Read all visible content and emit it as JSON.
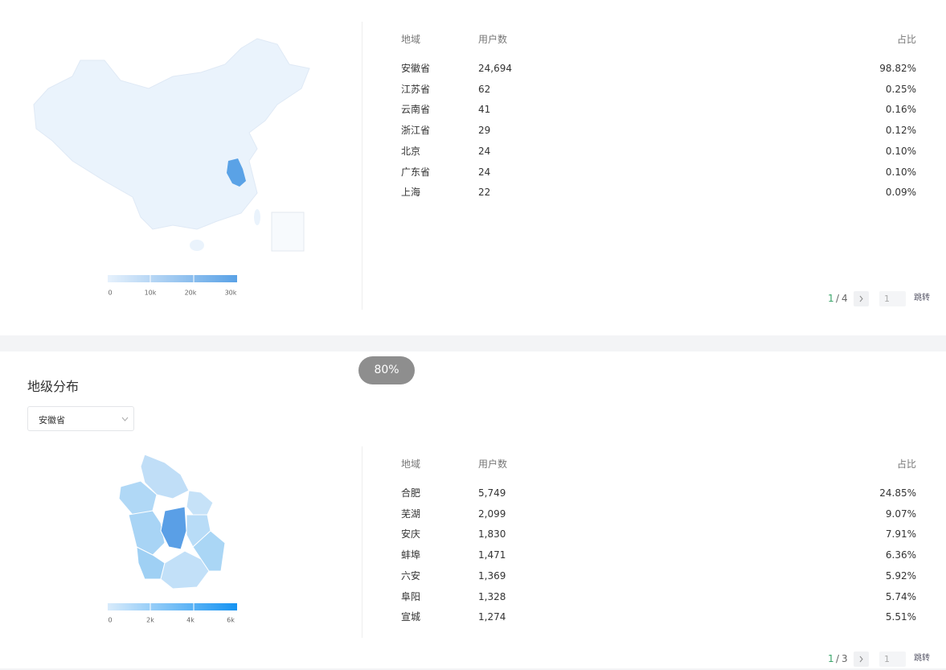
{
  "top": {
    "legend": {
      "ticks": [
        "0",
        "10k",
        "20k",
        "30k"
      ]
    },
    "table": {
      "headers": [
        "地域",
        "用户数",
        "占比"
      ],
      "rows": [
        [
          "安徽省",
          "24,694",
          "98.82%"
        ],
        [
          "江苏省",
          "62",
          "0.25%"
        ],
        [
          "云南省",
          "41",
          "0.16%"
        ],
        [
          "浙江省",
          "29",
          "0.12%"
        ],
        [
          "北京",
          "24",
          "0.10%"
        ],
        [
          "广东省",
          "24",
          "0.10%"
        ],
        [
          "上海",
          "22",
          "0.09%"
        ]
      ]
    },
    "pagination": {
      "current": "1",
      "separator": "/",
      "total": "4",
      "input": "1",
      "jump": "跳转"
    }
  },
  "zoom_badge": "80%",
  "bottom": {
    "title": "地级分布",
    "select": "安徽省",
    "legend": {
      "ticks": [
        "0",
        "2k",
        "4k",
        "6k"
      ]
    },
    "table": {
      "headers": [
        "地域",
        "用户数",
        "占比"
      ],
      "rows": [
        [
          "合肥",
          "5,749",
          "24.85%"
        ],
        [
          "芜湖",
          "2,099",
          "9.07%"
        ],
        [
          "安庆",
          "1,830",
          "7.91%"
        ],
        [
          "蚌埠",
          "1,471",
          "6.36%"
        ],
        [
          "六安",
          "1,369",
          "5.92%"
        ],
        [
          "阜阳",
          "1,328",
          "5.74%"
        ],
        [
          "宣城",
          "1,274",
          "5.51%"
        ]
      ]
    },
    "pagination": {
      "current": "1",
      "separator": "/",
      "total": "3",
      "input": "1",
      "jump": "跳转"
    }
  }
}
